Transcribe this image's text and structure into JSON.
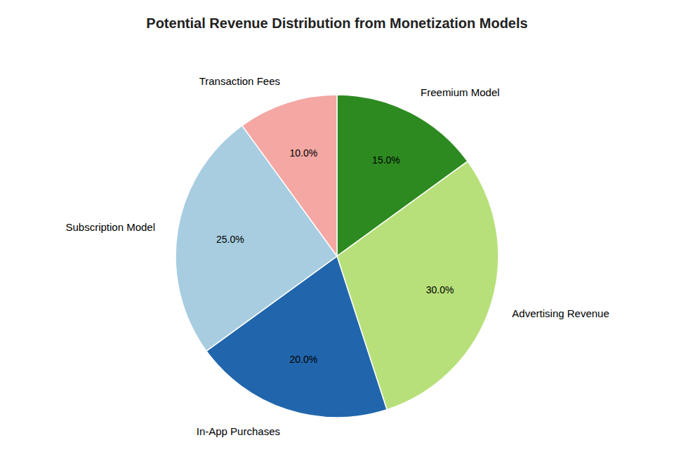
{
  "chart_data": {
    "type": "pie",
    "title": "Potential Revenue Distribution from Monetization Models",
    "categories": [
      "Freemium Model",
      "Advertising Revenue",
      "In-App Purchases",
      "Subscription Model",
      "Transaction Fees"
    ],
    "values": [
      15.0,
      30.0,
      20.0,
      25.0,
      10.0
    ],
    "value_labels": [
      "15.0%",
      "30.0%",
      "20.0%",
      "25.0%",
      "10.0%"
    ],
    "colors": [
      "#2d8a20",
      "#b8e07a",
      "#2166ac",
      "#a8cde0",
      "#f4a7a3"
    ],
    "data_labels": true
  }
}
